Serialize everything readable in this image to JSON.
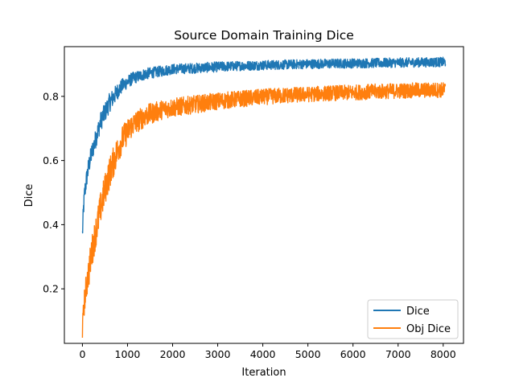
{
  "chart_data": {
    "type": "line",
    "title": "Source Domain Training Dice",
    "xlabel": "Iteration",
    "ylabel": "Dice",
    "xlim": [
      -400,
      8450
    ],
    "ylim": [
      0.03,
      0.955
    ],
    "xticks": [
      0,
      1000,
      2000,
      3000,
      4000,
      5000,
      6000,
      7000,
      8000
    ],
    "xtick_labels": [
      "0",
      "1000",
      "2000",
      "3000",
      "4000",
      "5000",
      "6000",
      "7000",
      "8000"
    ],
    "yticks": [
      0.2,
      0.4,
      0.6,
      0.8
    ],
    "ytick_labels": [
      "0.2",
      "0.4",
      "0.6",
      "0.8"
    ],
    "grid": false,
    "legend_position": "lower-right",
    "series": [
      {
        "name": "Dice",
        "color": "#1f77b4",
        "x": [
          0,
          25,
          50,
          100,
          150,
          200,
          300,
          400,
          500,
          600,
          700,
          800,
          900,
          1000,
          1100,
          1200,
          1400,
          1600,
          1800,
          2000,
          2500,
          3000,
          3500,
          4000,
          4500,
          5000,
          5500,
          6000,
          6500,
          7000,
          7500,
          8050
        ],
        "y": [
          0.37,
          0.45,
          0.5,
          0.55,
          0.59,
          0.62,
          0.67,
          0.72,
          0.75,
          0.78,
          0.8,
          0.82,
          0.835,
          0.845,
          0.855,
          0.86,
          0.87,
          0.875,
          0.88,
          0.885,
          0.888,
          0.892,
          0.895,
          0.897,
          0.899,
          0.901,
          0.902,
          0.903,
          0.904,
          0.905,
          0.906,
          0.907
        ],
        "noise": [
          0.03,
          0.03,
          0.03,
          0.03,
          0.03,
          0.03,
          0.03,
          0.03,
          0.03,
          0.03,
          0.028,
          0.025,
          0.022,
          0.02,
          0.02,
          0.018,
          0.018,
          0.017,
          0.017,
          0.016,
          0.016,
          0.016,
          0.015,
          0.015,
          0.015,
          0.015,
          0.015,
          0.015,
          0.015,
          0.015,
          0.015,
          0.015
        ]
      },
      {
        "name": "Obj Dice",
        "color": "#ff7f0e",
        "x": [
          0,
          25,
          50,
          100,
          150,
          200,
          300,
          400,
          500,
          600,
          700,
          800,
          900,
          1000,
          1100,
          1200,
          1400,
          1600,
          1800,
          2000,
          2500,
          3000,
          3500,
          4000,
          4500,
          5000,
          5500,
          6000,
          6500,
          7000,
          7500,
          8050
        ],
        "y": [
          0.07,
          0.13,
          0.17,
          0.22,
          0.26,
          0.31,
          0.38,
          0.45,
          0.51,
          0.56,
          0.6,
          0.64,
          0.67,
          0.69,
          0.71,
          0.72,
          0.74,
          0.75,
          0.76,
          0.765,
          0.775,
          0.785,
          0.792,
          0.798,
          0.803,
          0.806,
          0.81,
          0.812,
          0.815,
          0.817,
          0.819,
          0.82
        ],
        "noise": [
          0.03,
          0.035,
          0.04,
          0.045,
          0.05,
          0.05,
          0.05,
          0.05,
          0.05,
          0.05,
          0.048,
          0.045,
          0.042,
          0.04,
          0.038,
          0.036,
          0.034,
          0.032,
          0.03,
          0.03,
          0.028,
          0.027,
          0.026,
          0.025,
          0.025,
          0.024,
          0.024,
          0.024,
          0.024,
          0.024,
          0.024,
          0.024
        ]
      }
    ]
  }
}
